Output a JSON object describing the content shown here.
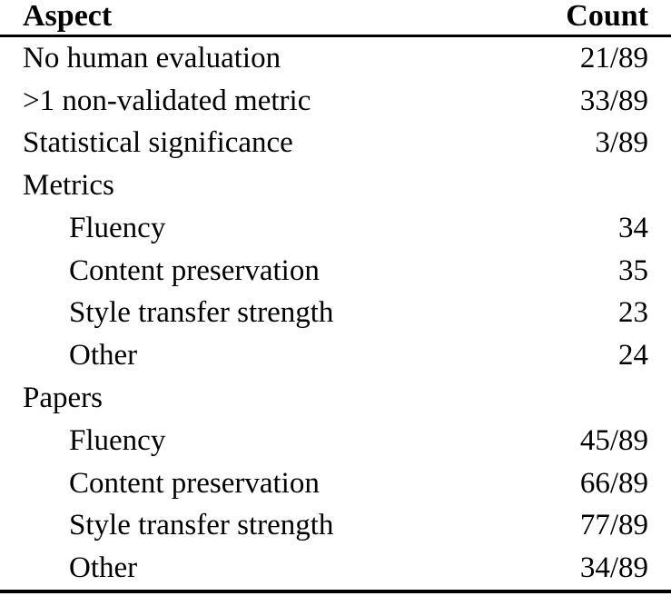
{
  "table": {
    "header": {
      "aspect": "Aspect",
      "count": "Count"
    },
    "rows": [
      {
        "label": "No human evaluation",
        "value": "21/89",
        "indent": false
      },
      {
        "label": ">1 non-validated metric",
        "value": "33/89",
        "indent": false
      },
      {
        "label": "Statistical significance",
        "value": "3/89",
        "indent": false
      },
      {
        "label": "Metrics",
        "value": "",
        "indent": false
      },
      {
        "label": "Fluency",
        "value": "34",
        "indent": true
      },
      {
        "label": "Content preservation",
        "value": "35",
        "indent": true
      },
      {
        "label": "Style transfer strength",
        "value": "23",
        "indent": true
      },
      {
        "label": "Other",
        "value": "24",
        "indent": true
      },
      {
        "label": "Papers",
        "value": "",
        "indent": false
      },
      {
        "label": "Fluency",
        "value": "45/89",
        "indent": true
      },
      {
        "label": "Content preservation",
        "value": "66/89",
        "indent": true
      },
      {
        "label": "Style transfer strength",
        "value": "77/89",
        "indent": true
      },
      {
        "label": "Other",
        "value": "34/89",
        "indent": true
      }
    ],
    "colors": {
      "text": "#000000",
      "background": "#ffffff",
      "rule": "#000000"
    }
  },
  "chart_data": {
    "type": "table",
    "title": "",
    "columns": [
      "Aspect",
      "Count"
    ],
    "groups": [
      {
        "name": null,
        "rows": [
          [
            "No human evaluation",
            "21/89"
          ],
          [
            ">1 non-validated metric",
            "33/89"
          ],
          [
            "Statistical significance",
            "3/89"
          ]
        ]
      },
      {
        "name": "Metrics",
        "rows": [
          [
            "Fluency",
            "34"
          ],
          [
            "Content preservation",
            "35"
          ],
          [
            "Style transfer strength",
            "23"
          ],
          [
            "Other",
            "24"
          ]
        ]
      },
      {
        "name": "Papers",
        "rows": [
          [
            "Fluency",
            "45/89"
          ],
          [
            "Content preservation",
            "66/89"
          ],
          [
            "Style transfer strength",
            "77/89"
          ],
          [
            "Other",
            "34/89"
          ]
        ]
      }
    ]
  }
}
